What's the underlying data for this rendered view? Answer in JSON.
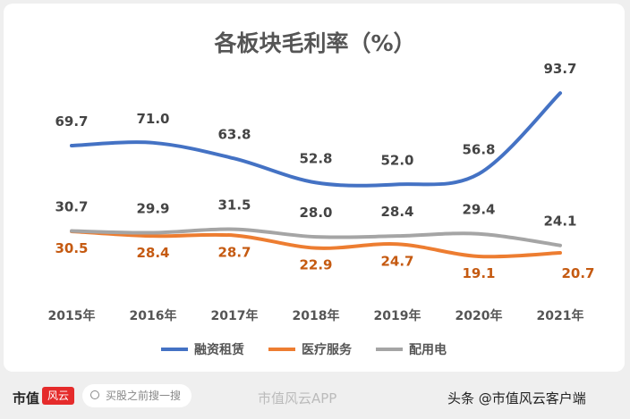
{
  "chart_data": {
    "type": "line",
    "title": "各板块毛利率（%）",
    "categories": [
      "2015年",
      "2016年",
      "2017年",
      "2018年",
      "2019年",
      "2020年",
      "2021年"
    ],
    "series": [
      {
        "name": "融资租赁",
        "color": "#4472c4",
        "values": [
          69.7,
          71.0,
          63.8,
          52.8,
          52.0,
          56.8,
          93.7
        ]
      },
      {
        "name": "医疗服务",
        "color": "#ed7d31",
        "values": [
          30.5,
          28.4,
          28.7,
          22.9,
          24.7,
          19.1,
          20.7
        ]
      },
      {
        "name": "配用电",
        "color": "#a5a5a5",
        "values": [
          30.7,
          29.9,
          31.5,
          28.0,
          28.4,
          29.4,
          24.1
        ]
      }
    ],
    "grid": false,
    "legend": "bottom"
  },
  "watermark": "市值风云",
  "footer": {
    "brand": "市值",
    "brand_badge": "风云",
    "search_placeholder": "买股之前搜一搜",
    "weibo": "市值风云APP",
    "toutiao": "头条 @市值风云客户端"
  }
}
